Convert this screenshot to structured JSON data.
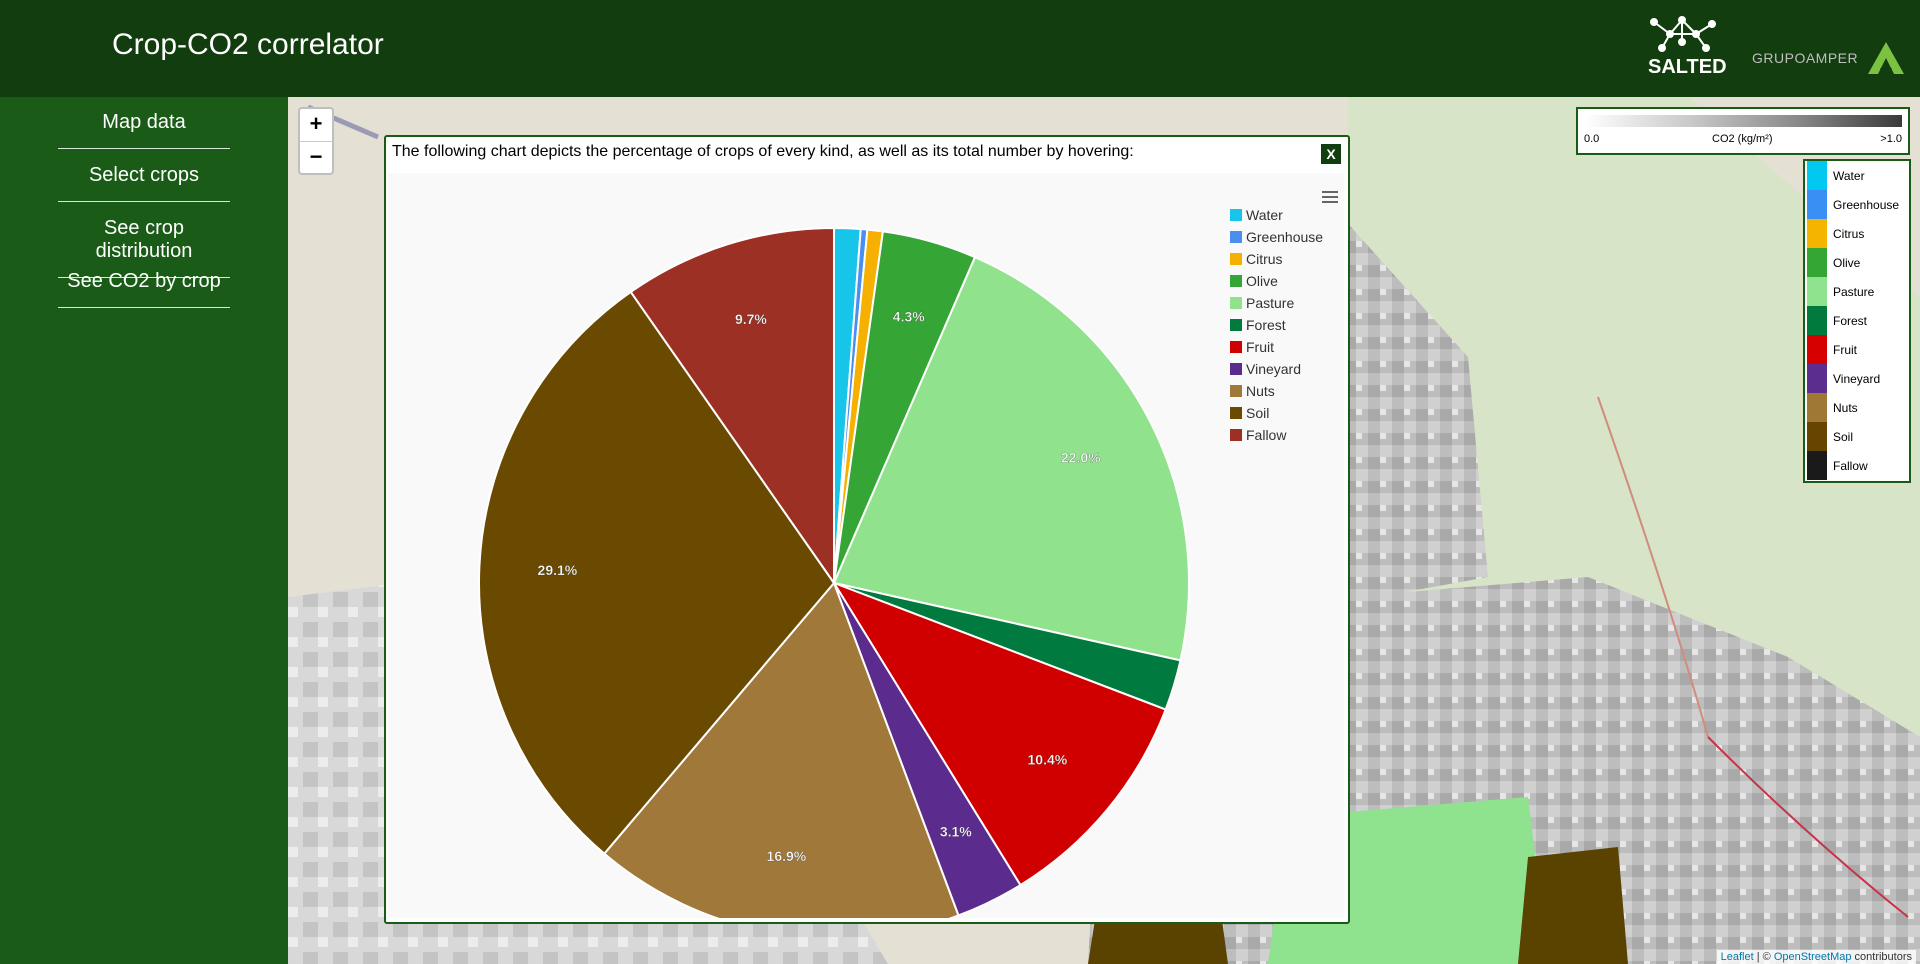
{
  "header": {
    "title": "Crop-CO2 correlator",
    "salted_logo_text": "SALTED",
    "grupo_logo_text": "GRUPOAMPER"
  },
  "sidebar": {
    "items": [
      {
        "label": "Map data"
      },
      {
        "label": "Select crops"
      },
      {
        "label": "See crop distribution"
      },
      {
        "label": "See CO2 by crop"
      }
    ]
  },
  "map": {
    "zoom_in": "+",
    "zoom_out": "−",
    "co2_scale": {
      "min": "0.0",
      "label": "CO2 (kg/m²)",
      "max": ">1.0"
    },
    "legend": [
      {
        "label": "Water",
        "color": "#00c8f0"
      },
      {
        "label": "Greenhouse",
        "color": "#3a8ff5"
      },
      {
        "label": "Citrus",
        "color": "#f5b400"
      },
      {
        "label": "Olive",
        "color": "#33a633"
      },
      {
        "label": "Pasture",
        "color": "#8fe38f"
      },
      {
        "label": "Forest",
        "color": "#007a3d"
      },
      {
        "label": "Fruit",
        "color": "#d60000"
      },
      {
        "label": "Vineyard",
        "color": "#5b2d8e"
      },
      {
        "label": "Nuts",
        "color": "#a07836"
      },
      {
        "label": "Soil",
        "color": "#654500"
      },
      {
        "label": "Fallow",
        "color": "#1a1a1a"
      }
    ],
    "attribution": {
      "leaflet": "Leaflet",
      "separator": " | © ",
      "osm": "OpenStreetMap",
      "suffix": " contributors"
    }
  },
  "modal": {
    "description": "The following chart depicts the percentage of crops of every kind, as well as its total number by hovering:",
    "close_label": "X"
  },
  "chart_data": {
    "type": "pie",
    "title": "",
    "categories": [
      "Water",
      "Greenhouse",
      "Citrus",
      "Olive",
      "Pasture",
      "Forest",
      "Fruit",
      "Vineyard",
      "Nuts",
      "Soil",
      "Fallow"
    ],
    "values": [
      1.2,
      0.3,
      0.7,
      4.3,
      22.0,
      2.3,
      10.4,
      3.1,
      16.9,
      29.1,
      9.7
    ],
    "labels": [
      "",
      "",
      "",
      "4.3%",
      "22.0%",
      "",
      "10.4%",
      "3.1%",
      "16.9%",
      "29.1%",
      "9.7%"
    ],
    "colors": [
      "#17c5ea",
      "#4a8ef0",
      "#f6b000",
      "#35a535",
      "#90e38c",
      "#007a3e",
      "#d10000",
      "#5b2c8e",
      "#a0783a",
      "#6a4a00",
      "#9c3024"
    ],
    "legend_position": "right"
  }
}
